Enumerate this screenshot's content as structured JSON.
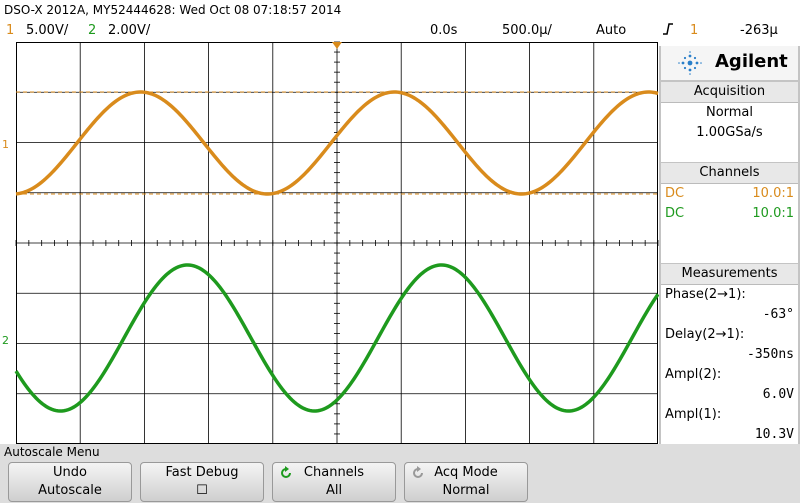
{
  "header": {
    "title": "DSO-X 2012A, MY52444628: Wed Oct 08 07:18:57 2014"
  },
  "status": {
    "ch1_num": "1",
    "ch1_scale": "5.00V/",
    "ch2_num": "2",
    "ch2_scale": "2.00V/",
    "time_pos": "0.0s",
    "time_scale": "500.0µ/",
    "trigger_mode": "Auto",
    "trigger_icon": "rising-edge-icon",
    "trigger_source": "1",
    "trigger_level": "-263µ"
  },
  "colors": {
    "ch1": "#d98b1c",
    "ch2": "#1e9a1e",
    "grid": "#000000"
  },
  "brand": {
    "name": "Agilent"
  },
  "acquisition": {
    "heading": "Acquisition",
    "mode": "Normal",
    "rate": "1.00GSa/s"
  },
  "channels": {
    "heading": "Channels",
    "rows": [
      {
        "coupling": "DC",
        "probe": "10.0:1"
      },
      {
        "coupling": "DC",
        "probe": "10.0:1"
      }
    ]
  },
  "measurements": {
    "heading": "Measurements",
    "items": [
      {
        "label": "Phase(2→1):",
        "value": "-63°"
      },
      {
        "label": "Delay(2→1):",
        "value": "-350ns"
      },
      {
        "label": "Ampl(2):",
        "value": "6.0V"
      },
      {
        "label": "Ampl(1):",
        "value": "10.3V"
      }
    ]
  },
  "menu": {
    "title": "Autoscale Menu",
    "softkeys": [
      {
        "line1": "Undo",
        "line2": "Autoscale"
      },
      {
        "line1": "Fast Debug",
        "line2": "☐"
      },
      {
        "line1": "Channels",
        "line2": "All"
      },
      {
        "line1": "Acq Mode",
        "line2": "Normal"
      }
    ]
  }
}
